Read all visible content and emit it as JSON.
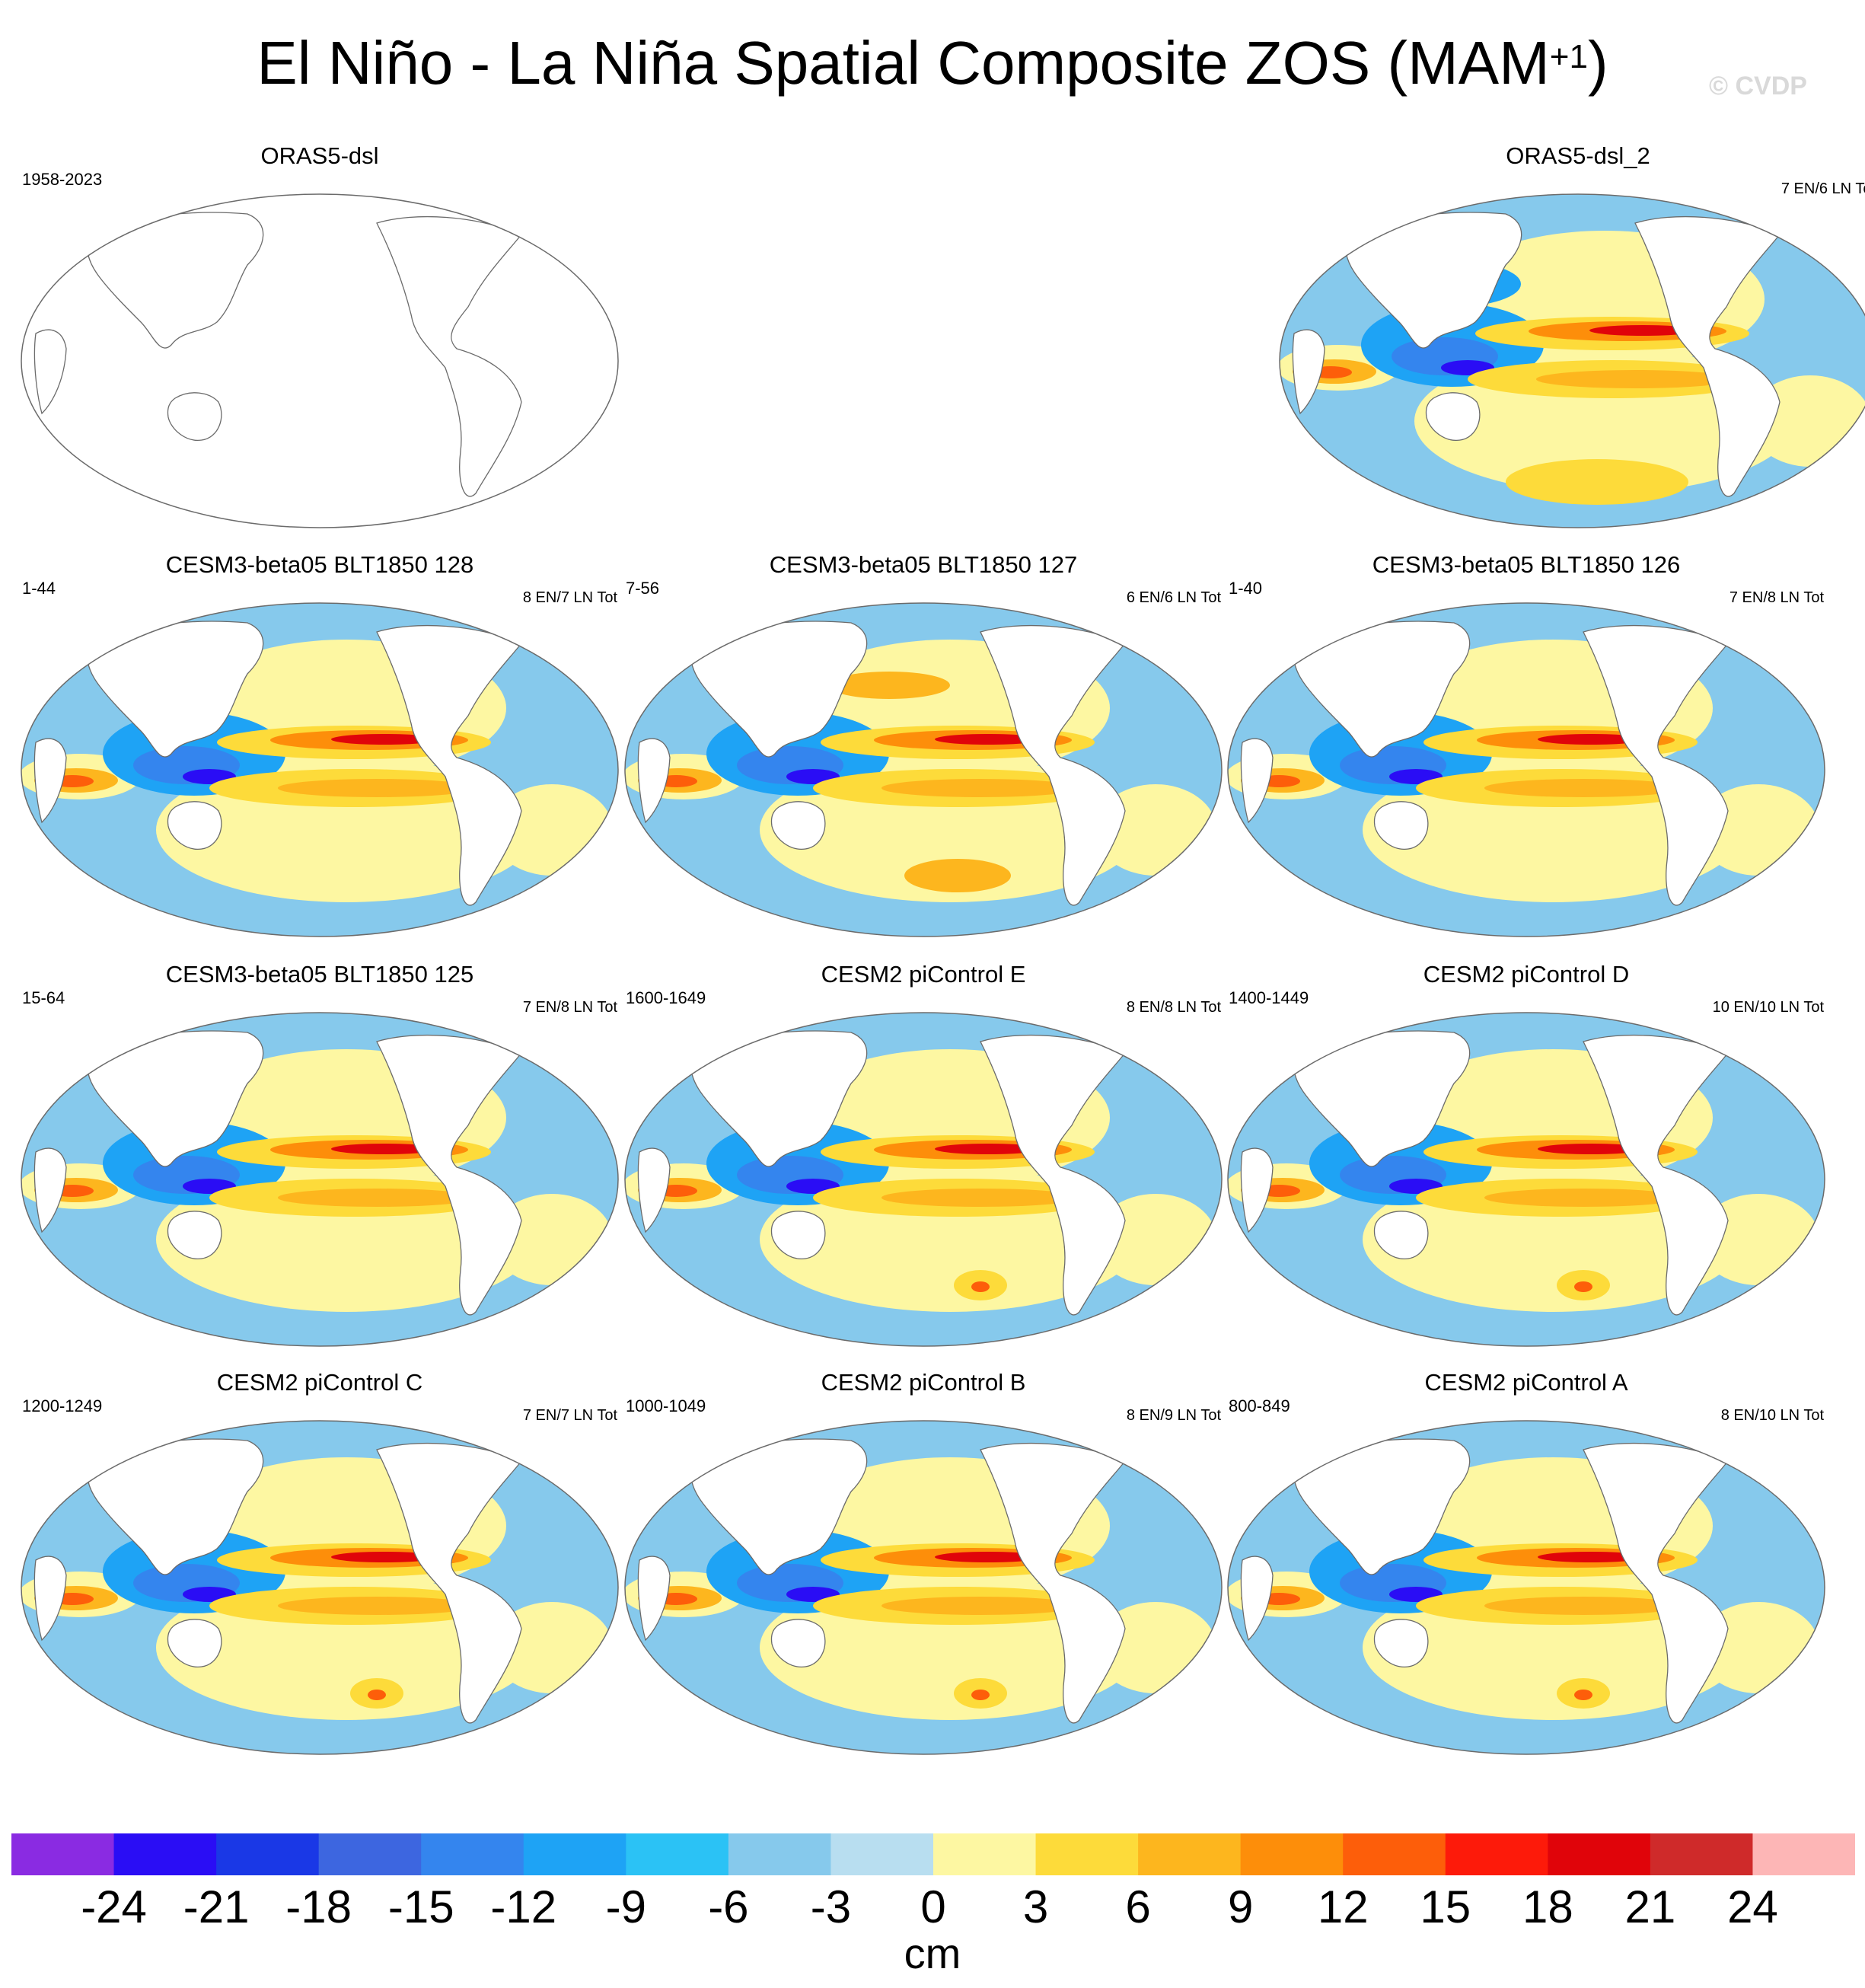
{
  "title": "El Niño - La Niña Spatial Composite ZOS (MAM",
  "title_superscript": "+1",
  "title_close": ")",
  "watermark": "© CVDP",
  "panels": [
    {
      "title": "ORAS5-dsl",
      "period": "1958-2023",
      "count": "",
      "style": "empty"
    },
    {
      "title": "ORAS5-dsl_2",
      "period": "",
      "count": "7 EN/6 LN Tot",
      "style": "obs"
    },
    {
      "title": "CESM3-beta05 BLT1850 128",
      "period": "1-44",
      "count": "8 EN/7 LN Tot",
      "style": "cesm3"
    },
    {
      "title": "CESM3-beta05 BLT1850 127",
      "period": "7-56",
      "count": "6 EN/6 LN Tot",
      "style": "cesm3b"
    },
    {
      "title": "CESM3-beta05 BLT1850 126",
      "period": "1-40",
      "count": "7 EN/8 LN Tot",
      "style": "cesm3"
    },
    {
      "title": "CESM3-beta05 BLT1850 125",
      "period": "15-64",
      "count": "7 EN/8 LN Tot",
      "style": "cesm3"
    },
    {
      "title": "CESM2 piControl E",
      "period": "1600-1649",
      "count": "8 EN/8 LN Tot",
      "style": "cesm2"
    },
    {
      "title": "CESM2 piControl D",
      "period": "1400-1449",
      "count": "10 EN/10 LN Tot",
      "style": "cesm2"
    },
    {
      "title": "CESM2 piControl C",
      "period": "1200-1249",
      "count": "7 EN/7 LN Tot",
      "style": "cesm2"
    },
    {
      "title": "CESM2 piControl B",
      "period": "1000-1049",
      "count": "8 EN/9 LN Tot",
      "style": "cesm2"
    },
    {
      "title": "CESM2 piControl A",
      "period": "800-849",
      "count": "8 EN/10 LN Tot",
      "style": "cesm2"
    }
  ],
  "colorbar": {
    "unit": "cm",
    "labels": [
      "-24",
      "-21",
      "-18",
      "-15",
      "-12",
      "-9",
      "-6",
      "-3",
      "0",
      "3",
      "6",
      "9",
      "12",
      "15",
      "18",
      "21",
      "24"
    ],
    "colors": [
      "#8a2be2",
      "#2a0df5",
      "#1a38e6",
      "#3d66e0",
      "#3485ee",
      "#1ea3f5",
      "#2bc2f5",
      "#86c9ec",
      "#b8def0",
      "#fdf7a2",
      "#fddb3a",
      "#fdb61e",
      "#fd8e0a",
      "#fd5e0a",
      "#fd1a0a",
      "#e0040a",
      "#cf2a2a",
      "#fdb6b6"
    ]
  }
}
